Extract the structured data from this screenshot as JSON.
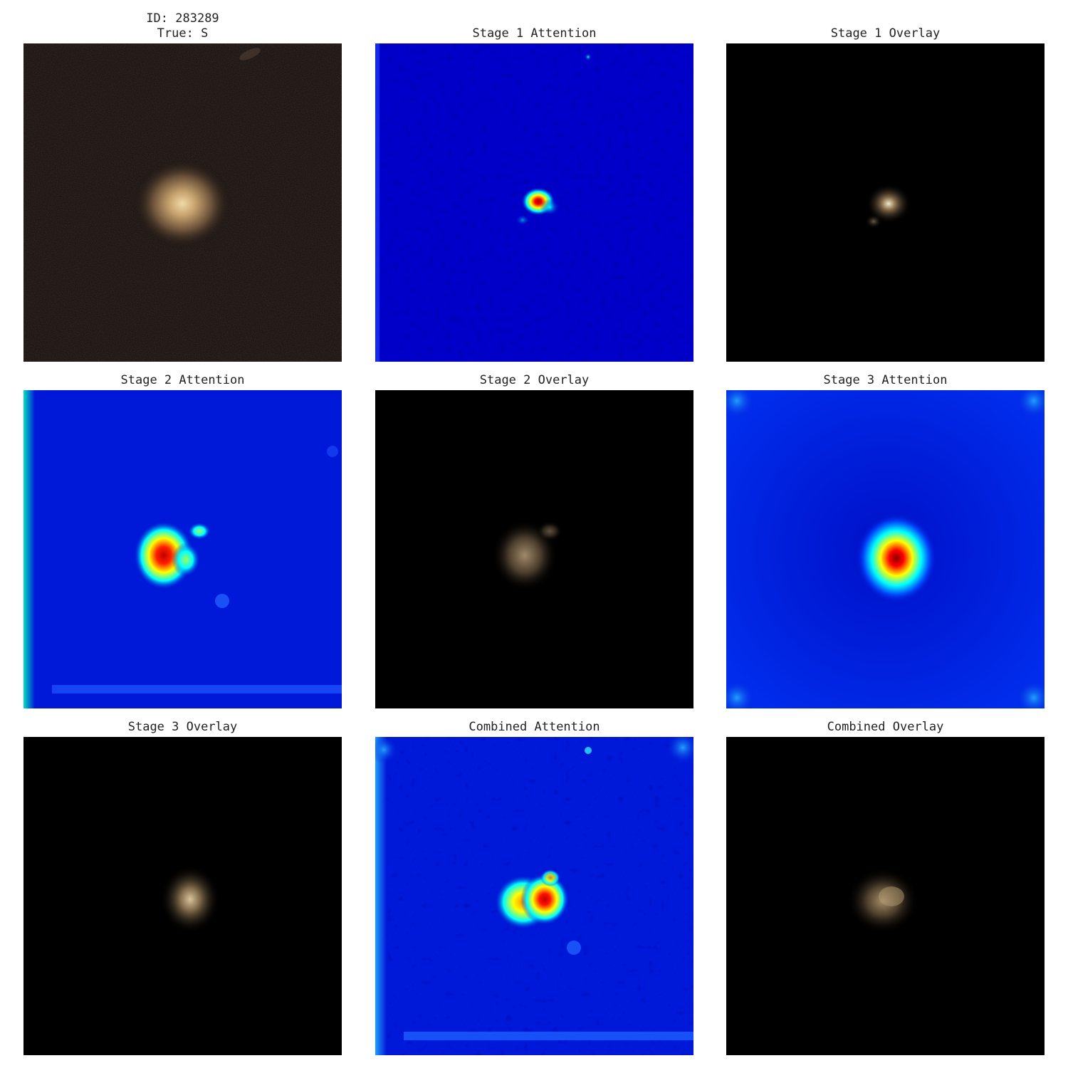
{
  "figure": {
    "panels": [
      {
        "id": "original",
        "title_lines": [
          "ID: 283289",
          "True: S"
        ],
        "kind": "galaxy-photo"
      },
      {
        "id": "stage1-attention",
        "title": "Stage 1 Attention",
        "kind": "attention-heatmap"
      },
      {
        "id": "stage1-overlay",
        "title": "Stage 1 Overlay",
        "kind": "attention-overlay"
      },
      {
        "id": "stage2-attention",
        "title": "Stage 2 Attention",
        "kind": "attention-heatmap"
      },
      {
        "id": "stage2-overlay",
        "title": "Stage 2 Overlay",
        "kind": "attention-overlay"
      },
      {
        "id": "stage3-attention",
        "title": "Stage 3 Attention",
        "kind": "attention-heatmap"
      },
      {
        "id": "stage3-overlay",
        "title": "Stage 3 Overlay",
        "kind": "attention-overlay"
      },
      {
        "id": "combined-attention",
        "title": "Combined Attention",
        "kind": "attention-heatmap"
      },
      {
        "id": "combined-overlay",
        "title": "Combined Overlay",
        "kind": "attention-overlay"
      }
    ],
    "colors": {
      "background": "#ffffff",
      "heatmap_low": "#0000c8",
      "heatmap_mid": "#00ffff",
      "heatmap_high": "#ff0000",
      "overlay_bg": "#000000",
      "galaxy_core": "#e8c890"
    }
  }
}
